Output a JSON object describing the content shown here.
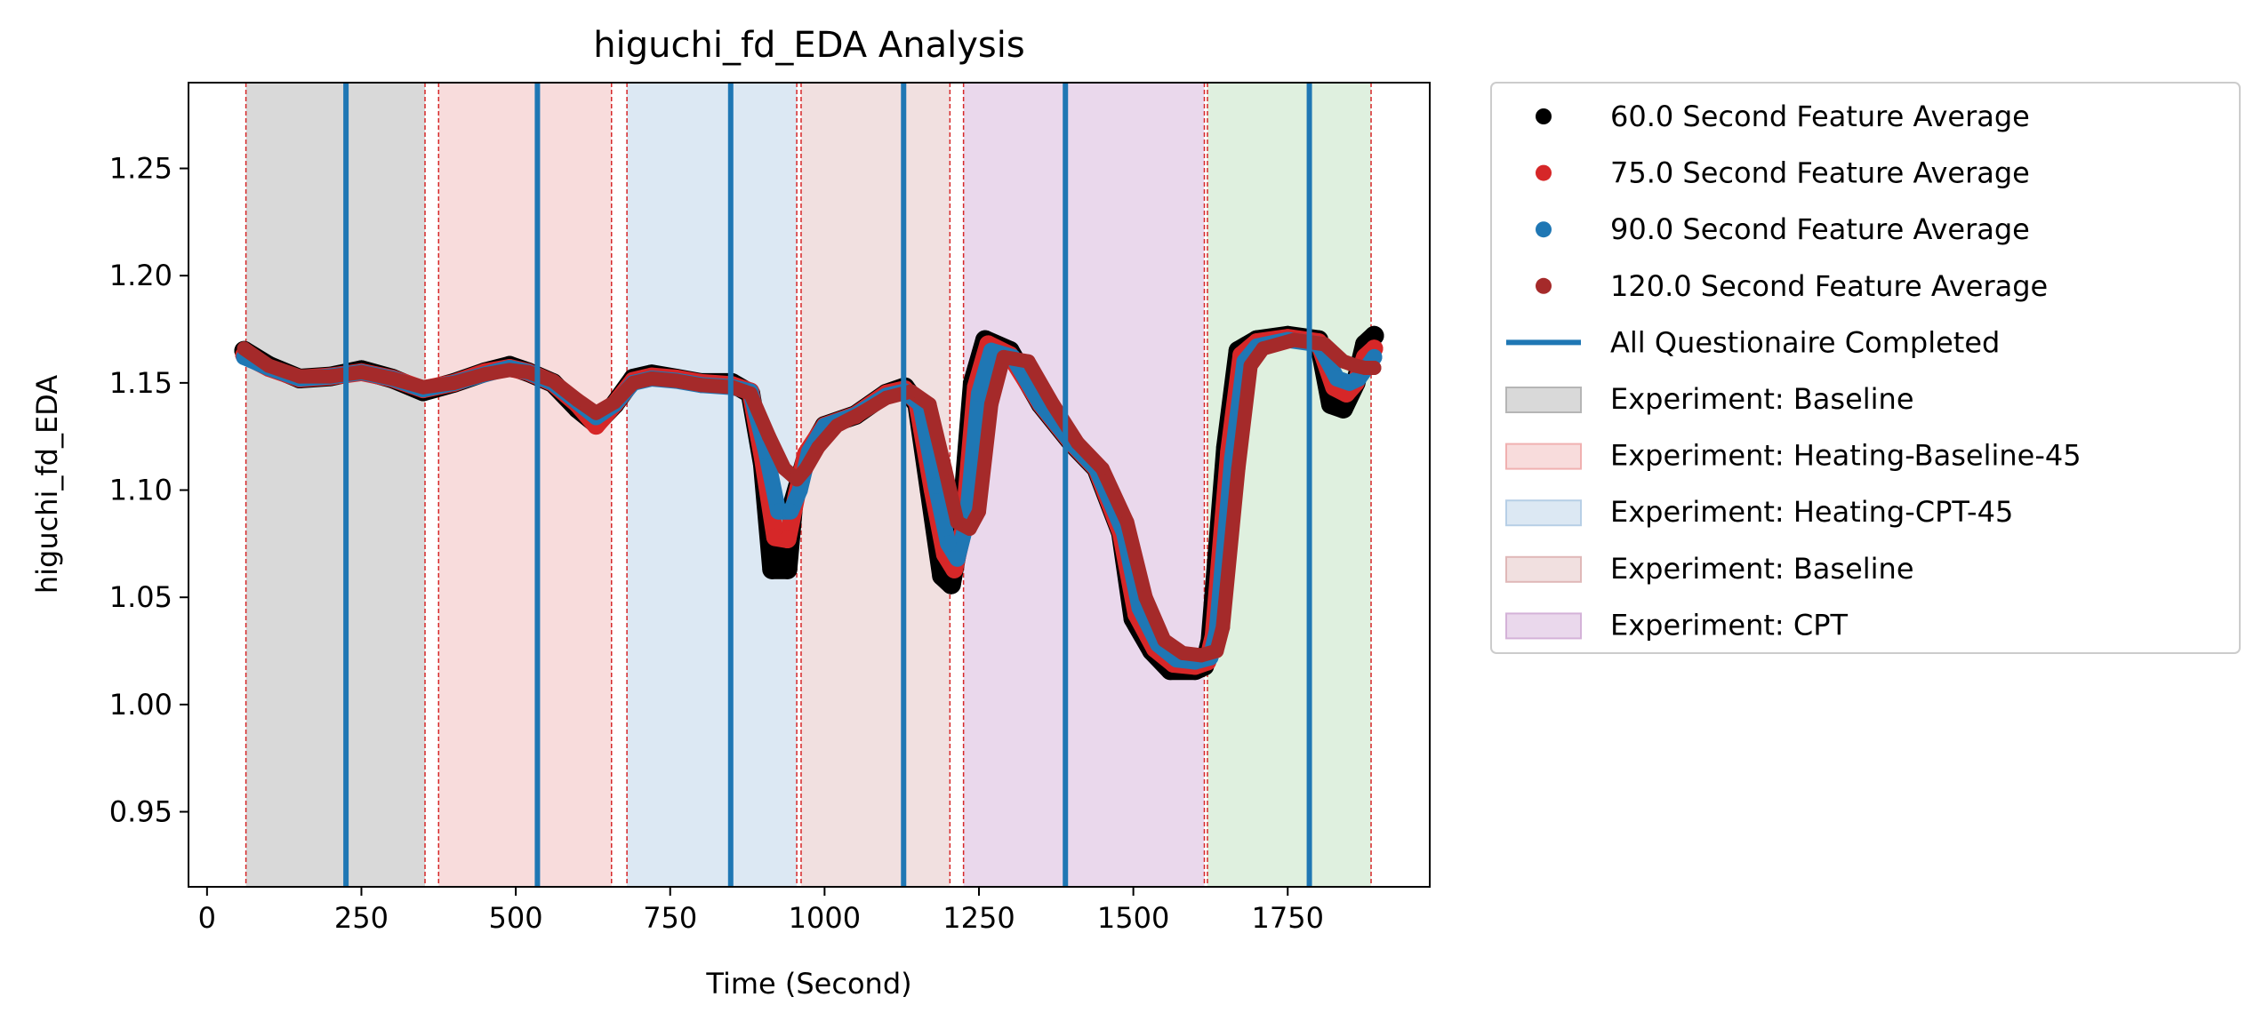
{
  "chart_data": {
    "type": "line",
    "title": "higuchi_fd_EDA Analysis",
    "xlabel": "Time (Second)",
    "ylabel": "higuchi_fd_EDA",
    "xlim": [
      -30,
      1980
    ],
    "ylim": [
      0.915,
      1.29
    ],
    "x_ticks": [
      0,
      250,
      500,
      750,
      1000,
      1250,
      1500,
      1750
    ],
    "y_ticks": [
      0.95,
      1.0,
      1.05,
      1.1,
      1.15,
      1.2,
      1.25
    ],
    "x_tick_labels": [
      "0",
      "250",
      "500",
      "750",
      "1000",
      "1250",
      "1500",
      "1750"
    ],
    "y_tick_labels": [
      "0.95",
      "1.00",
      "1.05",
      "1.10",
      "1.15",
      "1.20",
      "1.25"
    ],
    "legend_placement": "outside-right",
    "grid": false,
    "colors": {
      "black": "#000000",
      "red": "#d62728",
      "blue": "#1f77b4",
      "brown": "#a52a2a",
      "questionnaire": "#1f77b4",
      "boundary": "#d62728"
    },
    "experiment_regions": [
      {
        "name": "Experiment: Baseline",
        "x0": 63,
        "x1": 353,
        "color": "#d9d9d9"
      },
      {
        "name": "Experiment: Heating-Baseline-45",
        "x0": 375,
        "x1": 655,
        "color": "#f8dcdc"
      },
      {
        "name": "Experiment: Heating-CPT-45",
        "x0": 680,
        "x1": 955,
        "color": "#dce8f3"
      },
      {
        "name": "Experiment: Baseline",
        "x0": 962,
        "x1": 1203,
        "color": "#f1e0e0"
      },
      {
        "name": "Experiment: CPT",
        "x0": 1225,
        "x1": 1615,
        "color": "#ead8ec"
      },
      {
        "name": "",
        "x0": 1620,
        "x1": 1885,
        "color": "#dff0df"
      }
    ],
    "boundary_lines": [
      63,
      353,
      375,
      655,
      680,
      955,
      962,
      1203,
      1225,
      1615,
      1620,
      1885
    ],
    "questionnaire_lines": [
      225,
      535,
      848,
      1128,
      1390,
      1785
    ],
    "series": [
      {
        "name": "60.0 Second Feature Average",
        "color": "#000000",
        "x": [
          60,
          100,
          150,
          200,
          250,
          300,
          350,
          400,
          450,
          490,
          520,
          560,
          600,
          630,
          660,
          690,
          720,
          760,
          800,
          850,
          880,
          900,
          915,
          940,
          950,
          970,
          1000,
          1050,
          1100,
          1130,
          1150,
          1170,
          1190,
          1205,
          1220,
          1240,
          1260,
          1300,
          1350,
          1400,
          1440,
          1480,
          1500,
          1530,
          1560,
          1600,
          1615,
          1625,
          1650,
          1670,
          1700,
          1750,
          1800,
          1820,
          1840,
          1860,
          1875,
          1890
        ],
        "y": [
          1.165,
          1.158,
          1.152,
          1.153,
          1.156,
          1.152,
          1.146,
          1.15,
          1.155,
          1.158,
          1.155,
          1.15,
          1.138,
          1.131,
          1.14,
          1.152,
          1.154,
          1.152,
          1.15,
          1.15,
          1.145,
          1.112,
          1.063,
          1.063,
          1.095,
          1.115,
          1.13,
          1.135,
          1.145,
          1.148,
          1.14,
          1.1,
          1.06,
          1.056,
          1.08,
          1.15,
          1.17,
          1.165,
          1.14,
          1.122,
          1.11,
          1.08,
          1.04,
          1.025,
          1.016,
          1.016,
          1.018,
          1.03,
          1.12,
          1.165,
          1.17,
          1.172,
          1.17,
          1.14,
          1.138,
          1.15,
          1.168,
          1.172
        ]
      },
      {
        "name": "75.0 Second Feature Average",
        "color": "#d62728",
        "x": [
          60,
          100,
          150,
          200,
          250,
          300,
          350,
          400,
          450,
          490,
          520,
          560,
          600,
          630,
          660,
          690,
          720,
          760,
          800,
          850,
          880,
          900,
          920,
          940,
          955,
          970,
          1000,
          1050,
          1100,
          1130,
          1150,
          1175,
          1195,
          1210,
          1225,
          1245,
          1265,
          1300,
          1350,
          1400,
          1440,
          1480,
          1505,
          1535,
          1565,
          1600,
          1620,
          1630,
          1655,
          1675,
          1700,
          1750,
          1800,
          1825,
          1845,
          1860,
          1875,
          1890
        ],
        "y": [
          1.163,
          1.157,
          1.152,
          1.153,
          1.155,
          1.152,
          1.147,
          1.15,
          1.155,
          1.157,
          1.155,
          1.15,
          1.14,
          1.13,
          1.14,
          1.151,
          1.153,
          1.152,
          1.15,
          1.149,
          1.146,
          1.115,
          1.078,
          1.077,
          1.098,
          1.117,
          1.13,
          1.135,
          1.145,
          1.147,
          1.141,
          1.1,
          1.07,
          1.063,
          1.082,
          1.148,
          1.168,
          1.163,
          1.14,
          1.122,
          1.11,
          1.08,
          1.042,
          1.026,
          1.019,
          1.018,
          1.02,
          1.032,
          1.118,
          1.163,
          1.169,
          1.171,
          1.169,
          1.148,
          1.145,
          1.15,
          1.162,
          1.166
        ]
      },
      {
        "name": "90.0 Second Feature Average",
        "color": "#1f77b4",
        "x": [
          60,
          100,
          150,
          200,
          250,
          300,
          350,
          400,
          450,
          490,
          520,
          560,
          600,
          630,
          660,
          690,
          720,
          760,
          800,
          850,
          880,
          905,
          925,
          945,
          960,
          975,
          1000,
          1050,
          1100,
          1130,
          1155,
          1180,
          1200,
          1215,
          1230,
          1250,
          1270,
          1305,
          1350,
          1400,
          1440,
          1485,
          1510,
          1540,
          1570,
          1600,
          1625,
          1635,
          1660,
          1680,
          1700,
          1750,
          1800,
          1830,
          1850,
          1865,
          1880,
          1890
        ],
        "y": [
          1.162,
          1.157,
          1.152,
          1.153,
          1.155,
          1.152,
          1.147,
          1.15,
          1.154,
          1.157,
          1.155,
          1.15,
          1.141,
          1.134,
          1.14,
          1.15,
          1.152,
          1.151,
          1.149,
          1.148,
          1.146,
          1.118,
          1.09,
          1.09,
          1.1,
          1.118,
          1.13,
          1.135,
          1.144,
          1.146,
          1.14,
          1.102,
          1.075,
          1.068,
          1.085,
          1.145,
          1.165,
          1.162,
          1.14,
          1.122,
          1.11,
          1.08,
          1.045,
          1.028,
          1.021,
          1.02,
          1.022,
          1.034,
          1.115,
          1.16,
          1.167,
          1.17,
          1.168,
          1.152,
          1.15,
          1.152,
          1.158,
          1.162
        ]
      },
      {
        "name": "120.0 Second Feature Average",
        "color": "#a52a2a",
        "x": [
          60,
          100,
          150,
          200,
          250,
          300,
          350,
          400,
          450,
          490,
          520,
          560,
          600,
          630,
          660,
          690,
          720,
          760,
          800,
          850,
          880,
          910,
          935,
          955,
          970,
          990,
          1020,
          1060,
          1100,
          1140,
          1170,
          1195,
          1215,
          1235,
          1250,
          1270,
          1290,
          1330,
          1370,
          1410,
          1450,
          1490,
          1520,
          1550,
          1580,
          1610,
          1635,
          1645,
          1670,
          1690,
          1710,
          1760,
          1810,
          1840,
          1860,
          1875,
          1890
        ],
        "y": [
          1.166,
          1.158,
          1.153,
          1.153,
          1.155,
          1.152,
          1.148,
          1.15,
          1.154,
          1.156,
          1.155,
          1.151,
          1.142,
          1.136,
          1.141,
          1.15,
          1.152,
          1.151,
          1.149,
          1.148,
          1.145,
          1.125,
          1.11,
          1.105,
          1.11,
          1.12,
          1.13,
          1.136,
          1.143,
          1.146,
          1.14,
          1.11,
          1.085,
          1.082,
          1.09,
          1.14,
          1.162,
          1.16,
          1.14,
          1.122,
          1.11,
          1.085,
          1.05,
          1.03,
          1.024,
          1.023,
          1.025,
          1.036,
          1.11,
          1.158,
          1.166,
          1.17,
          1.168,
          1.16,
          1.158,
          1.157,
          1.157
        ]
      }
    ],
    "legend": [
      {
        "label": "60.0 Second Feature Average",
        "kind": "marker",
        "color": "#000000"
      },
      {
        "label": "75.0 Second Feature Average",
        "kind": "marker",
        "color": "#d62728"
      },
      {
        "label": "90.0 Second Feature Average",
        "kind": "marker",
        "color": "#1f77b4"
      },
      {
        "label": "120.0 Second Feature Average",
        "kind": "marker",
        "color": "#a52a2a"
      },
      {
        "label": "All Questionaire Completed",
        "kind": "line",
        "color": "#1f77b4"
      },
      {
        "label": "Experiment: Baseline",
        "kind": "patch",
        "color": "#d9d9d9",
        "edge": "#b5b5b5"
      },
      {
        "label": "Experiment: Heating-Baseline-45",
        "kind": "patch",
        "color": "#f8dcdc",
        "edge": "#f0b0b0"
      },
      {
        "label": "Experiment: Heating-CPT-45",
        "kind": "patch",
        "color": "#dce8f3",
        "edge": "#b7cfe6"
      },
      {
        "label": "Experiment: Baseline",
        "kind": "patch",
        "color": "#f1e0e0",
        "edge": "#e0b8b8"
      },
      {
        "label": "Experiment: CPT",
        "kind": "patch",
        "color": "#ead8ec",
        "edge": "#d4b2d8"
      }
    ]
  }
}
